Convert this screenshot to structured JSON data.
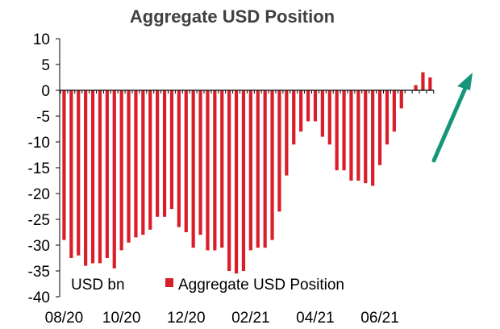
{
  "chart_data": {
    "type": "bar",
    "title": "Aggregate USD Position",
    "unit_label": "USD bn",
    "legend": {
      "entries": [
        "Aggregate USD Position"
      ],
      "placement": "bottom-center-inside"
    },
    "colors": {
      "bars": "#d91e2a",
      "arrow": "#16957a",
      "axis": "#000000",
      "text": "#000000",
      "title": "#404040"
    },
    "ylim": [
      -40,
      10
    ],
    "yticks": [
      10,
      5,
      0,
      -5,
      -10,
      -15,
      -20,
      -25,
      -30,
      -35,
      -40
    ],
    "xtick_labels": [
      "08/20",
      "10/20",
      "12/20",
      "02/21",
      "04/21",
      "06/21"
    ],
    "xtick_bar_index": [
      0,
      8,
      17,
      26,
      35,
      44
    ],
    "grid": false,
    "annotation": "upward arrow (teal) at right",
    "series": [
      {
        "name": "Aggregate USD Position",
        "values": [
          -29.0,
          -32.5,
          -32.0,
          -34.0,
          -33.5,
          -33.5,
          -32.5,
          -34.5,
          -31.0,
          -29.5,
          -28.5,
          -28.0,
          -27.0,
          -24.5,
          -24.5,
          -23.0,
          -26.5,
          -27.5,
          -30.5,
          -28.0,
          -31.0,
          -31.0,
          -30.5,
          -35.0,
          -35.5,
          -35.0,
          -31.0,
          -30.5,
          -30.5,
          -29.0,
          -23.5,
          -16.5,
          -10.5,
          -8.0,
          -6.0,
          -6.0,
          -9.0,
          -10.5,
          -15.5,
          -15.5,
          -17.5,
          -17.5,
          -18.0,
          -18.5,
          -14.5,
          -10.5,
          -8.0,
          -3.5,
          0.0,
          1.0,
          3.5,
          2.5
        ]
      }
    ]
  }
}
